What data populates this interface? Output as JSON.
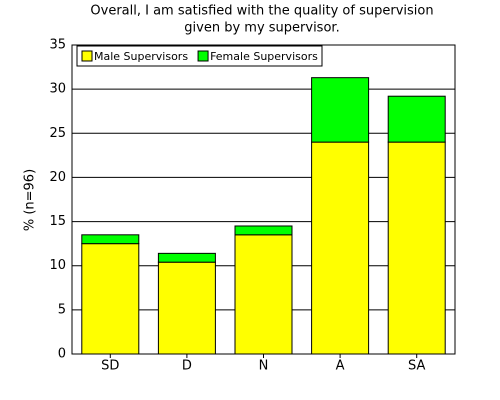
{
  "chart_data": {
    "type": "stacked_bar",
    "title": [
      "Overall, I am satisfied with the quality of supervision",
      "given by my supervisor."
    ],
    "y_label": "% (n=96)",
    "categories": [
      "SD",
      "D",
      "N",
      "A",
      "SA"
    ],
    "series": [
      {
        "name": "Male Supervisors",
        "color": "#ffff00",
        "values": [
          12.5,
          10.4,
          13.5,
          24.0,
          24.0
        ]
      },
      {
        "name": "Female Supervisors",
        "color": "#00ff00",
        "values": [
          1.0,
          1.0,
          1.0,
          7.3,
          5.2
        ]
      }
    ],
    "ylim": [
      0,
      35
    ],
    "yticks": [
      0,
      5,
      10,
      15,
      20,
      25,
      30,
      35
    ],
    "grid": true,
    "legend": "top-left"
  }
}
